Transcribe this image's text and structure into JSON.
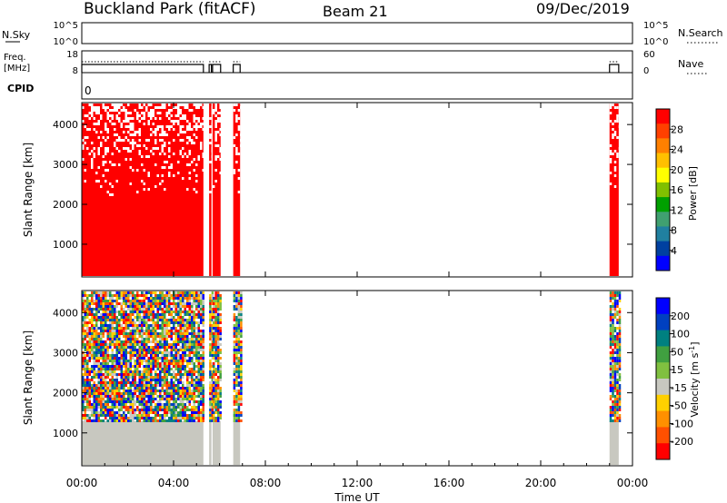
{
  "header": {
    "station": "Buckland Park (fitACF)",
    "beam": "Beam 21",
    "date": "09/Dec/2019"
  },
  "nsky": {
    "label": "N.Sky",
    "left_ticks": [
      "10^5",
      "10^0"
    ],
    "right_ticks": [
      "10^5",
      "10^0"
    ],
    "right_label": "N.Search"
  },
  "freq": {
    "label_line1": "Freq.",
    "label_line2": "[MHz]",
    "left_ticks": [
      "18",
      "8"
    ],
    "right_ticks": [
      "60",
      "0"
    ],
    "right_label": "Nave"
  },
  "cpid": {
    "label": "CPID",
    "value": "0"
  },
  "colors": {
    "data_red": "#ff0000",
    "ground_grey": "#c8c8c0"
  },
  "chart_data": [
    {
      "type": "heatmap",
      "parameter": "Power",
      "ylabel": "Slant Range [km]",
      "yticks": [
        1000,
        2000,
        3000,
        4000
      ],
      "ylim": [
        180,
        4550
      ],
      "xlim": [
        0,
        24
      ],
      "colorbar_label": "Power [dB]",
      "colorbar_ticks": [
        "28",
        "24",
        "20",
        "16",
        "12",
        "8",
        "4"
      ],
      "colorbar_colors": [
        "#ff0000",
        "#ff4000",
        "#ff8000",
        "#ffc000",
        "#ffff00",
        "#80c000",
        "#00a000",
        "#40a070",
        "#2080a0",
        "#0040a0",
        "#0000ff"
      ],
      "data_segments_hours": [
        [
          0.0,
          5.3
        ],
        [
          5.55,
          5.65
        ],
        [
          5.7,
          6.05
        ],
        [
          6.6,
          6.9
        ],
        [
          23.0,
          23.4
        ]
      ]
    },
    {
      "type": "heatmap",
      "parameter": "Velocity",
      "ylabel": "Slant Range [km]",
      "yticks": [
        1000,
        2000,
        3000,
        4000
      ],
      "ylim": [
        180,
        4550
      ],
      "xlim": [
        0,
        24
      ],
      "xlabel": "Time UT",
      "xticks": [
        "00:00",
        "04:00",
        "08:00",
        "12:00",
        "16:00",
        "20:00",
        "00:00"
      ],
      "colorbar_label": "Velocity [m s",
      "colorbar_label_sup": "-1",
      "colorbar_label_end": "]",
      "colorbar_ticks": [
        "200",
        "100",
        "50",
        "15",
        "-15",
        "-50",
        "-100",
        "-200"
      ],
      "colorbar_colors": [
        "#0000ff",
        "#0040c0",
        "#008080",
        "#40a040",
        "#80c040",
        "#c8c8c0",
        "#ffd000",
        "#ff9000",
        "#ff5000",
        "#ff0000"
      ],
      "ground_scatter_top_km": 1300,
      "data_segments_hours": [
        [
          0.0,
          5.3
        ],
        [
          5.55,
          5.65
        ],
        [
          5.7,
          6.05
        ],
        [
          6.6,
          6.9
        ],
        [
          23.0,
          23.4
        ]
      ]
    }
  ]
}
